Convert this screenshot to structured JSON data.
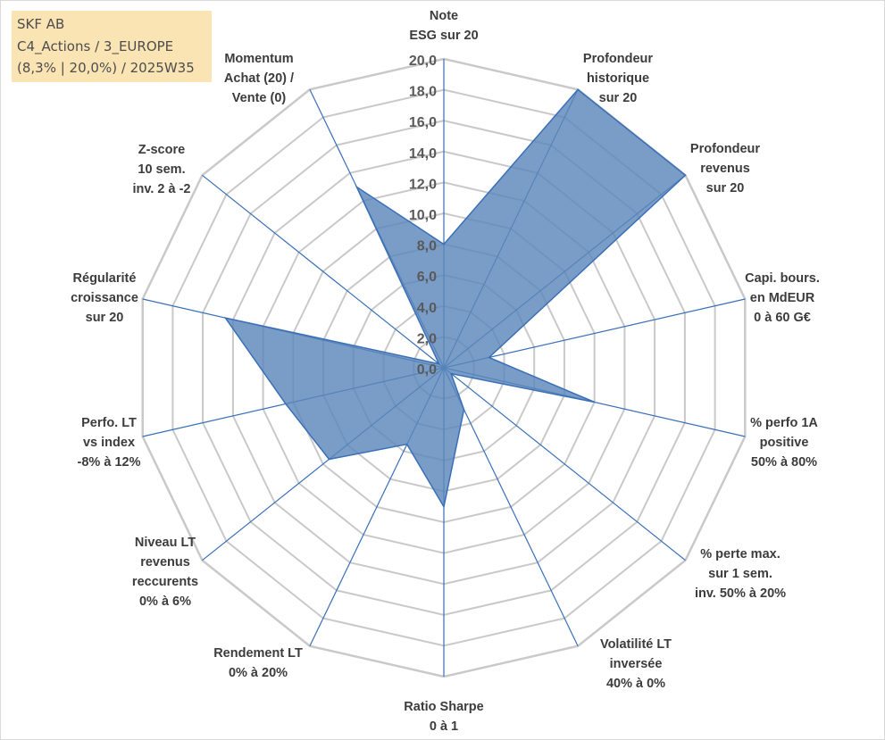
{
  "header": {
    "line1": "SKF AB",
    "line2": "C4_Actions / 3_EUROPE",
    "line3": "(8,3% | 20,0%) / 2025W35"
  },
  "colors": {
    "fill": "#5b87ba",
    "line": "#3a6fb8",
    "grid": "#c9c9c9",
    "header_bg": "#fbe4b4"
  },
  "chart_data": {
    "type": "radar",
    "r_range": [
      0,
      20
    ],
    "r_ticks": [
      "0,0",
      "2,0",
      "4,0",
      "6,0",
      "8,0",
      "10,0",
      "12,0",
      "14,0",
      "16,0",
      "18,0",
      "20,0"
    ],
    "grid": true,
    "categories": [
      [
        "Note",
        "ESG sur 20"
      ],
      [
        "Profondeur",
        "historique",
        "sur 20"
      ],
      [
        "Profondeur",
        "revenus",
        "sur 20"
      ],
      [
        "Capi. bours.",
        "en MdEUR",
        "0 à 60 G€"
      ],
      [
        "% perfo 1A",
        "positive",
        "50% à 80%"
      ],
      [
        "% perte max.",
        "sur 1 sem.",
        "inv. 50% à 20%"
      ],
      [
        "Volatilité LT",
        "inversée",
        "40% à 0%"
      ],
      [
        "Ratio Sharpe",
        "0 à 1"
      ],
      [
        "Rendement LT",
        "0% à 20%"
      ],
      [
        "Niveau LT",
        "revenus",
        "reccurents",
        "0% à 6%"
      ],
      [
        "Perfo. LT",
        "vs index",
        "-8% à 12%"
      ],
      [
        "Régularité",
        "croissance",
        "sur 20"
      ],
      [
        "Z-score",
        "10 sem.",
        "inv. 2 à -2"
      ],
      [
        "Momentum",
        "Achat (20) /",
        "Vente (0)"
      ]
    ],
    "values": [
      8.0,
      20.0,
      20.0,
      3.0,
      10.0,
      0.6,
      3.0,
      9.0,
      5.5,
      9.5,
      10.5,
      14.5,
      0.4,
      13.0
    ]
  }
}
